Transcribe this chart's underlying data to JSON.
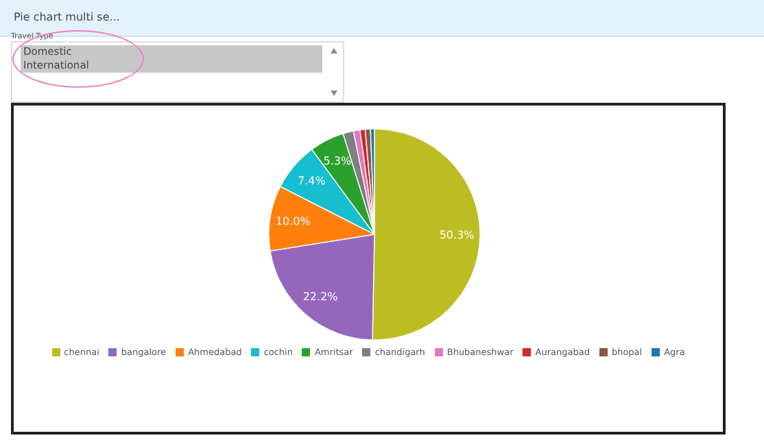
{
  "chart_data": {
    "type": "pie",
    "title": "Pie chart multi se...",
    "annotations": [
      "Travel Type",
      "Domestic",
      "International"
    ],
    "categories": [
      "chennai",
      "bangalore",
      "Ahmedabad",
      "cochin",
      "Amritsar",
      "chandigarh",
      "Bhubaneshwar",
      "Aurangabad",
      "bhopal",
      "Agra"
    ],
    "values": [
      50.3,
      22.2,
      10.0,
      7.4,
      5.3,
      1.6,
      1.0,
      0.8,
      0.8,
      0.6
    ],
    "colors": [
      "#bcbd22",
      "#9467bd",
      "#ff7f0e",
      "#17becf",
      "#2ca02c",
      "#7f7f7f",
      "#e377c2",
      "#d62728",
      "#8c564b",
      "#1f77b4"
    ],
    "value_labels": [
      "50.3%",
      "22.2%",
      "10.0%",
      "7.4%",
      "5.3%",
      null,
      null,
      null,
      null,
      null
    ],
    "legend": "bottom"
  }
}
